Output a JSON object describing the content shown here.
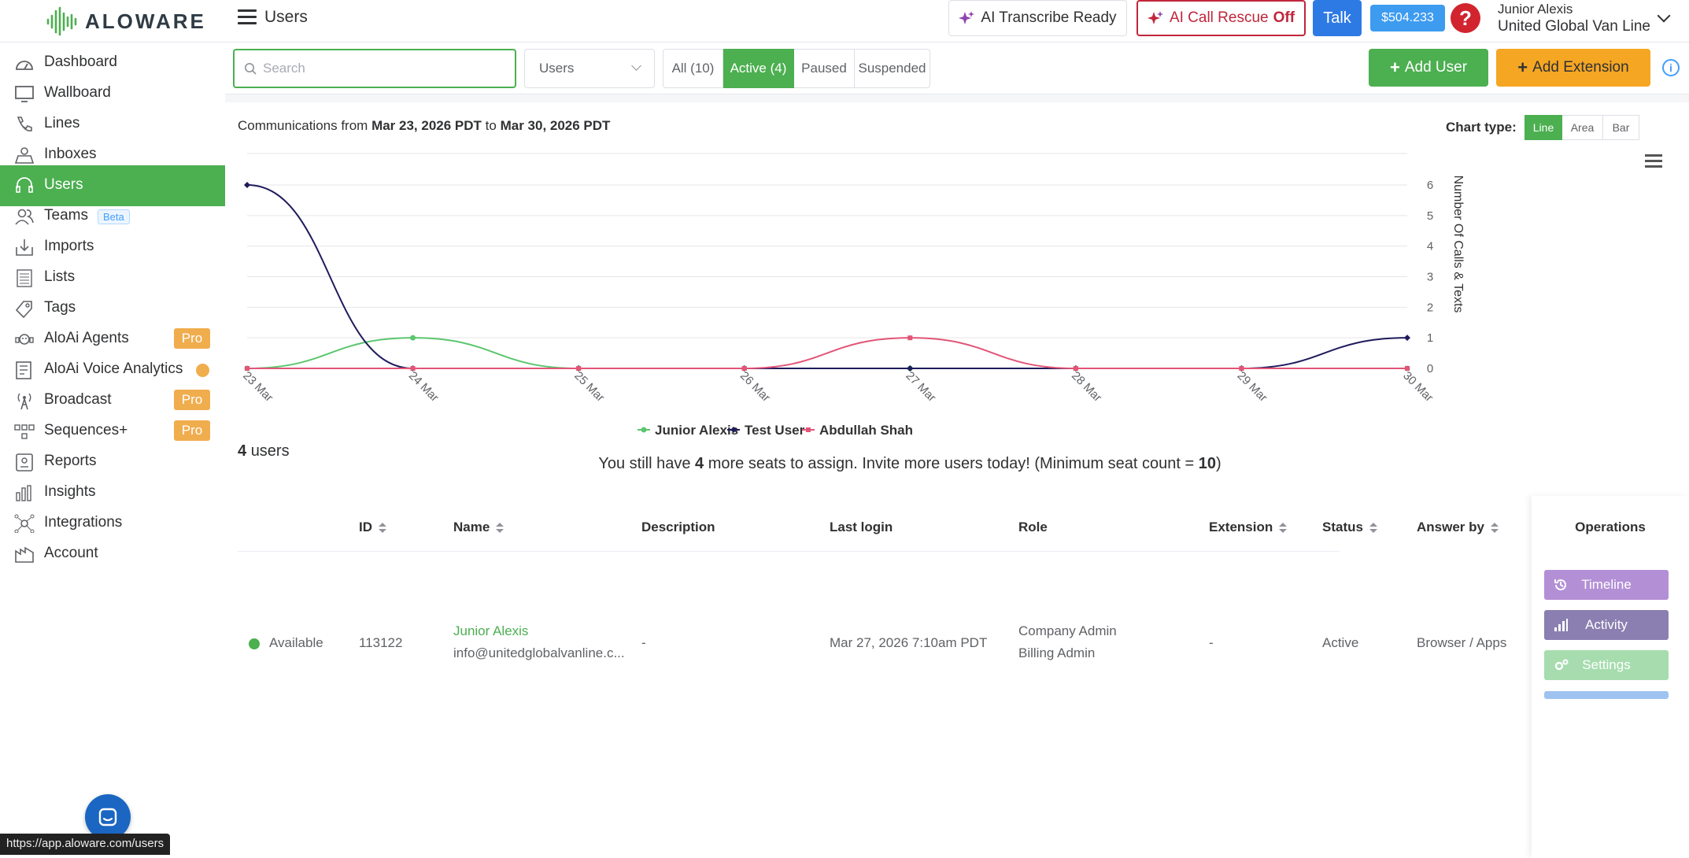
{
  "app": {
    "logo_text": "ALOWARE",
    "page_title": "Users"
  },
  "topbar": {
    "ai_transcribe": "AI Transcribe Ready",
    "ai_rescue_prefix": "AI Call Rescue",
    "ai_rescue_state": "Off",
    "talk": "Talk",
    "balance": "$504.233",
    "help": "?",
    "user_name": "Junior Alexis",
    "company": "United Global Van Line"
  },
  "sidebar": {
    "items": [
      {
        "label": "Dashboard",
        "icon": "dashboard-icon"
      },
      {
        "label": "Wallboard",
        "icon": "wallboard-icon"
      },
      {
        "label": "Lines",
        "icon": "phone-icon"
      },
      {
        "label": "Inboxes",
        "icon": "inbox-icon"
      },
      {
        "label": "Users",
        "icon": "headset-icon",
        "active": true
      },
      {
        "label": "Teams",
        "icon": "team-icon",
        "badge": "Beta"
      },
      {
        "label": "Imports",
        "icon": "import-icon"
      },
      {
        "label": "Lists",
        "icon": "list-icon"
      },
      {
        "label": "Tags",
        "icon": "tag-icon"
      },
      {
        "label": "AloAi Agents",
        "icon": "ai-agent-icon",
        "pro": "Pro"
      },
      {
        "label": "AloAi Voice Analytics",
        "icon": "analytics-icon",
        "dot": true
      },
      {
        "label": "Broadcast",
        "icon": "broadcast-icon",
        "pro": "Pro"
      },
      {
        "label": "Sequences+",
        "icon": "sequence-icon",
        "pro": "Pro"
      },
      {
        "label": "Reports",
        "icon": "report-icon"
      },
      {
        "label": "Insights",
        "icon": "insights-icon"
      },
      {
        "label": "Integrations",
        "icon": "integrations-icon"
      },
      {
        "label": "Account",
        "icon": "account-icon"
      }
    ],
    "url_tooltip": "https://app.aloware.com/users"
  },
  "filters": {
    "search_placeholder": "Search",
    "search_value": "",
    "select_value": "Users",
    "segments": [
      {
        "label": "All (10)",
        "active": false
      },
      {
        "label": "Active (4)",
        "active": true
      },
      {
        "label": "Paused",
        "active": false
      },
      {
        "label": "Suspended",
        "active": false
      }
    ],
    "add_user": "Add User",
    "add_extension": "Add Extension",
    "info": "i"
  },
  "comm": {
    "prefix": "Communications from",
    "from": "Mar 23, 2026 PDT",
    "mid": "to",
    "to": "Mar 30, 2026 PDT"
  },
  "chart_type": {
    "label": "Chart type:",
    "options": [
      {
        "label": "Line",
        "active": true
      },
      {
        "label": "Area",
        "active": false
      },
      {
        "label": "Bar",
        "active": false
      }
    ]
  },
  "chart_data": {
    "type": "line",
    "title": "",
    "xlabel": "",
    "ylabel": "Number Of Calls & Texts",
    "categories": [
      "23 Mar",
      "24 Mar",
      "25 Mar",
      "26 Mar",
      "27 Mar",
      "28 Mar",
      "29 Mar",
      "30 Mar"
    ],
    "ylim": [
      0,
      6
    ],
    "yticks": [
      0,
      1,
      2,
      3,
      4,
      5,
      6
    ],
    "yaxis_side": "right",
    "grid": true,
    "legend_position": "bottom",
    "smooth": true,
    "series": [
      {
        "name": "Junior Alexis",
        "color": "#5cc66e",
        "values": [
          0,
          1,
          0,
          0,
          0,
          0,
          0,
          0
        ]
      },
      {
        "name": "Test User",
        "color": "#1f1b5c",
        "values": [
          6,
          0,
          0,
          0,
          0,
          0,
          0,
          1
        ]
      },
      {
        "name": "Abdullah Shah",
        "color": "#e25577",
        "values": [
          0,
          0,
          0,
          0,
          1,
          0,
          0,
          0
        ]
      }
    ]
  },
  "summary": {
    "count": "4",
    "count_label": "users",
    "seats_prefix": "You still have",
    "seats_num": "4",
    "seats_mid": "more seats to assign. Invite more users today! (Minimum seat count =",
    "seats_min": "10",
    "seats_suffix": ")"
  },
  "table": {
    "headers": {
      "id": "ID",
      "name": "Name",
      "description": "Description",
      "last_login": "Last login",
      "role": "Role",
      "extension": "Extension",
      "status": "Status",
      "answer_by": "Answer by",
      "operations": "Operations"
    },
    "rows": [
      {
        "presence": "Available",
        "id": "113122",
        "name": "Junior Alexis",
        "email": "info@unitedglobalvanline.c...",
        "description": "-",
        "last_login": "Mar 27, 2026 7:10am PDT",
        "role_1": "Company Admin",
        "role_2": "Billing Admin",
        "extension": "-",
        "status": "Active",
        "answer_by": "Browser / Apps"
      }
    ],
    "ops": {
      "timeline": "Timeline",
      "activity": "Activity",
      "settings": "Settings"
    }
  }
}
